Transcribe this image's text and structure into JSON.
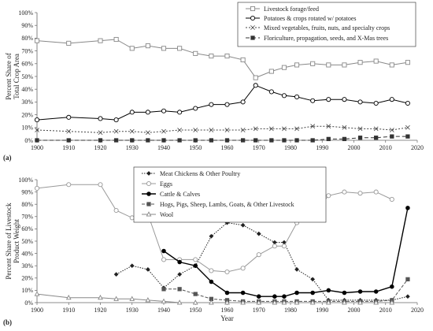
{
  "chart_data": [
    {
      "panel": "(a)",
      "type": "line",
      "xlabel": "",
      "ylabel": "Percent Share of Total Crop Area",
      "xlim": [
        1900,
        2020
      ],
      "ylim": [
        0,
        100
      ],
      "x_ticks": [
        "1900",
        "1910",
        "1920",
        "1930",
        "1940",
        "1950",
        "1960",
        "1970",
        "1980",
        "1990",
        "2000",
        "2010",
        "2020"
      ],
      "y_ticks": [
        "0%",
        "10%",
        "20%",
        "30%",
        "40%",
        "50%",
        "60%",
        "70%",
        "80%",
        "90%",
        "100%"
      ],
      "grid": false,
      "legend": "top-right",
      "series": [
        {
          "name": "Livestock forage/feed",
          "color": "#888888",
          "dash": "",
          "marker": "square-open",
          "points": [
            [
              1900,
              78
            ],
            [
              1910,
              76
            ],
            [
              1920,
              78
            ],
            [
              1925,
              79
            ],
            [
              1930,
              72
            ],
            [
              1935,
              74
            ],
            [
              1940,
              72
            ],
            [
              1945,
              72
            ],
            [
              1950,
              68
            ],
            [
              1955,
              66
            ],
            [
              1960,
              66
            ],
            [
              1965,
              63
            ],
            [
              1969,
              49
            ],
            [
              1974,
              54
            ],
            [
              1978,
              57
            ],
            [
              1982,
              59
            ],
            [
              1987,
              60
            ],
            [
              1992,
              59
            ],
            [
              1997,
              59
            ],
            [
              2002,
              61
            ],
            [
              2007,
              62
            ],
            [
              2012,
              59
            ],
            [
              2017,
              61
            ]
          ]
        },
        {
          "name": "Potatoes & crops rotated w/ potatoes",
          "color": "#000000",
          "dash": "",
          "marker": "circle-open",
          "points": [
            [
              1900,
              16
            ],
            [
              1910,
              18
            ],
            [
              1920,
              17
            ],
            [
              1925,
              16
            ],
            [
              1930,
              22
            ],
            [
              1935,
              22
            ],
            [
              1940,
              23
            ],
            [
              1945,
              22
            ],
            [
              1950,
              25
            ],
            [
              1955,
              28
            ],
            [
              1960,
              28
            ],
            [
              1965,
              30
            ],
            [
              1969,
              43
            ],
            [
              1974,
              38
            ],
            [
              1978,
              35
            ],
            [
              1982,
              34
            ],
            [
              1987,
              31
            ],
            [
              1992,
              32
            ],
            [
              1997,
              32
            ],
            [
              2002,
              30
            ],
            [
              2007,
              29
            ],
            [
              2012,
              32
            ],
            [
              2017,
              29
            ]
          ]
        },
        {
          "name": "Mixed vegetables, fruits, nuts, and specialty crops",
          "color": "#444444",
          "dash": "2,2",
          "marker": "x",
          "points": [
            [
              1900,
              8
            ],
            [
              1910,
              7
            ],
            [
              1920,
              6
            ],
            [
              1925,
              7
            ],
            [
              1930,
              7
            ],
            [
              1935,
              6
            ],
            [
              1940,
              7
            ],
            [
              1945,
              8
            ],
            [
              1950,
              8
            ],
            [
              1955,
              8
            ],
            [
              1960,
              8
            ],
            [
              1965,
              8
            ],
            [
              1969,
              9
            ],
            [
              1974,
              9
            ],
            [
              1978,
              9
            ],
            [
              1982,
              9
            ],
            [
              1987,
              11
            ],
            [
              1992,
              11
            ],
            [
              1997,
              10
            ],
            [
              2002,
              9
            ],
            [
              2007,
              9
            ],
            [
              2012,
              8
            ],
            [
              2017,
              10
            ]
          ]
        },
        {
          "name": "Floriculture, propagation, seeds, and X-Mas trees",
          "color": "#333333",
          "dash": "5,3",
          "marker": "square-filled",
          "points": [
            [
              1900,
              0
            ],
            [
              1910,
              0
            ],
            [
              1920,
              0
            ],
            [
              1925,
              0
            ],
            [
              1930,
              0
            ],
            [
              1935,
              0
            ],
            [
              1940,
              0
            ],
            [
              1945,
              0
            ],
            [
              1950,
              0
            ],
            [
              1955,
              0
            ],
            [
              1960,
              0
            ],
            [
              1965,
              0
            ],
            [
              1969,
              0
            ],
            [
              1974,
              0
            ],
            [
              1978,
              0
            ],
            [
              1982,
              0
            ],
            [
              1987,
              0
            ],
            [
              1992,
              1
            ],
            [
              1997,
              1
            ],
            [
              2002,
              2
            ],
            [
              2007,
              2
            ],
            [
              2012,
              3
            ],
            [
              2017,
              3
            ]
          ]
        }
      ]
    },
    {
      "panel": "(b)",
      "type": "line",
      "xlabel": "Year",
      "ylabel": "Percent Share of Livestock Product Weight",
      "xlim": [
        1900,
        2020
      ],
      "ylim": [
        0,
        100
      ],
      "x_ticks": [
        "1900",
        "1910",
        "1920",
        "1930",
        "1940",
        "1950",
        "1960",
        "1970",
        "1980",
        "1990",
        "2000",
        "2010",
        "2020"
      ],
      "y_ticks": [
        "0%",
        "10%",
        "20%",
        "30%",
        "40%",
        "50%",
        "60%",
        "70%",
        "80%",
        "90%",
        "100%"
      ],
      "grid": false,
      "legend": "top-left",
      "series": [
        {
          "name": "Meat Chickens & Other Poultry",
          "color": "#222222",
          "dash": "1.5,1.5",
          "marker": "diamond-filled",
          "points": [
            [
              1925,
              23
            ],
            [
              1930,
              30
            ],
            [
              1935,
              27
            ],
            [
              1940,
              12
            ],
            [
              1945,
              23
            ],
            [
              1950,
              30
            ],
            [
              1955,
              54
            ],
            [
              1960,
              65
            ],
            [
              1965,
              63
            ],
            [
              1970,
              56
            ],
            [
              1975,
              49
            ],
            [
              1978,
              49
            ],
            [
              1982,
              27
            ],
            [
              1987,
              19
            ],
            [
              1992,
              2
            ],
            [
              1997,
              2
            ],
            [
              2002,
              2
            ],
            [
              2007,
              2
            ],
            [
              2012,
              2
            ],
            [
              2017,
              5
            ]
          ]
        },
        {
          "name": "Eggs",
          "color": "#999999",
          "dash": "",
          "marker": "circle-open",
          "points": [
            [
              1900,
              93
            ],
            [
              1910,
              96
            ],
            [
              1920,
              96
            ],
            [
              1925,
              75
            ],
            [
              1930,
              69
            ],
            [
              1935,
              72
            ],
            [
              1940,
              35
            ],
            [
              1945,
              35
            ],
            [
              1950,
              35
            ],
            [
              1955,
              26
            ],
            [
              1960,
              25
            ],
            [
              1965,
              28
            ],
            [
              1970,
              39
            ],
            [
              1975,
              46
            ],
            [
              1978,
              46
            ],
            [
              1982,
              65
            ],
            [
              1987,
              72
            ],
            [
              1992,
              87
            ],
            [
              1997,
              90
            ],
            [
              2002,
              89
            ],
            [
              2007,
              90
            ],
            [
              2012,
              84
            ]
          ]
        },
        {
          "name": "Cattle & Calves",
          "color": "#000000",
          "dash": "",
          "marker": "circle-filled",
          "points": [
            [
              1940,
              42
            ],
            [
              1945,
              33
            ],
            [
              1950,
              30
            ],
            [
              1955,
              17
            ],
            [
              1960,
              8
            ],
            [
              1965,
              8
            ],
            [
              1970,
              5
            ],
            [
              1975,
              5
            ],
            [
              1978,
              5
            ],
            [
              1982,
              8
            ],
            [
              1987,
              8
            ],
            [
              1992,
              10
            ],
            [
              1997,
              8
            ],
            [
              2002,
              9
            ],
            [
              2007,
              9
            ],
            [
              2012,
              13
            ],
            [
              2017,
              77
            ]
          ]
        },
        {
          "name": "Hogs, Pigs, Sheep, Lambs, Goats, & Other Livestock",
          "color": "#555555",
          "dash": "4,2",
          "marker": "square-filled",
          "points": [
            [
              1940,
              11
            ],
            [
              1945,
              11
            ],
            [
              1950,
              7
            ],
            [
              1955,
              3
            ],
            [
              1960,
              2
            ],
            [
              1965,
              1
            ],
            [
              1970,
              1
            ],
            [
              1975,
              1
            ],
            [
              1978,
              1
            ],
            [
              1982,
              1
            ],
            [
              1987,
              1
            ],
            [
              1992,
              1
            ],
            [
              1997,
              1
            ],
            [
              2002,
              1
            ],
            [
              2007,
              1
            ],
            [
              2012,
              2
            ],
            [
              2017,
              19
            ]
          ]
        },
        {
          "name": "Wool",
          "color": "#888888",
          "dash": "",
          "marker": "triangle-open",
          "points": [
            [
              1900,
              7
            ],
            [
              1910,
              4
            ],
            [
              1920,
              4
            ],
            [
              1925,
              3
            ],
            [
              1930,
              3
            ],
            [
              1935,
              2
            ],
            [
              1940,
              1
            ],
            [
              1945,
              0
            ],
            [
              1950,
              0
            ],
            [
              1955,
              0
            ],
            [
              1960,
              0
            ],
            [
              1965,
              0
            ],
            [
              1970,
              0
            ],
            [
              1975,
              0
            ],
            [
              1978,
              0
            ],
            [
              1982,
              0
            ],
            [
              1987,
              0
            ],
            [
              1992,
              0
            ],
            [
              1997,
              0
            ],
            [
              2002,
              0
            ],
            [
              2007,
              0
            ],
            [
              2012,
              0
            ]
          ]
        }
      ]
    }
  ]
}
